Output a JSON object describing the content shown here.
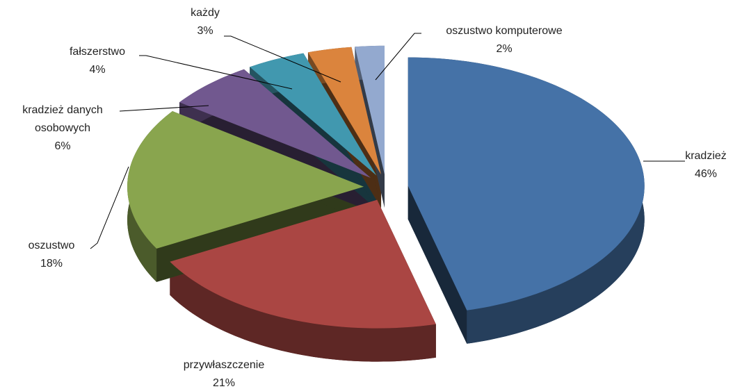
{
  "chart_data": {
    "type": "pie",
    "categories": [
      "kradzież",
      "przywłaszczenie",
      "oszustwo",
      "kradzież danych osobowych",
      "fałszerstwo",
      "każdy",
      "oszustwo komputerowe"
    ],
    "values": [
      46,
      21,
      18,
      6,
      4,
      3,
      2
    ],
    "value_labels": [
      "46%",
      "21%",
      "18%",
      "6%",
      "4%",
      "3%",
      "2%"
    ],
    "colors": [
      "#4572a7",
      "#aa4643",
      "#89a54e",
      "#71588f",
      "#4198af",
      "#db843d",
      "#93a9cf"
    ]
  }
}
